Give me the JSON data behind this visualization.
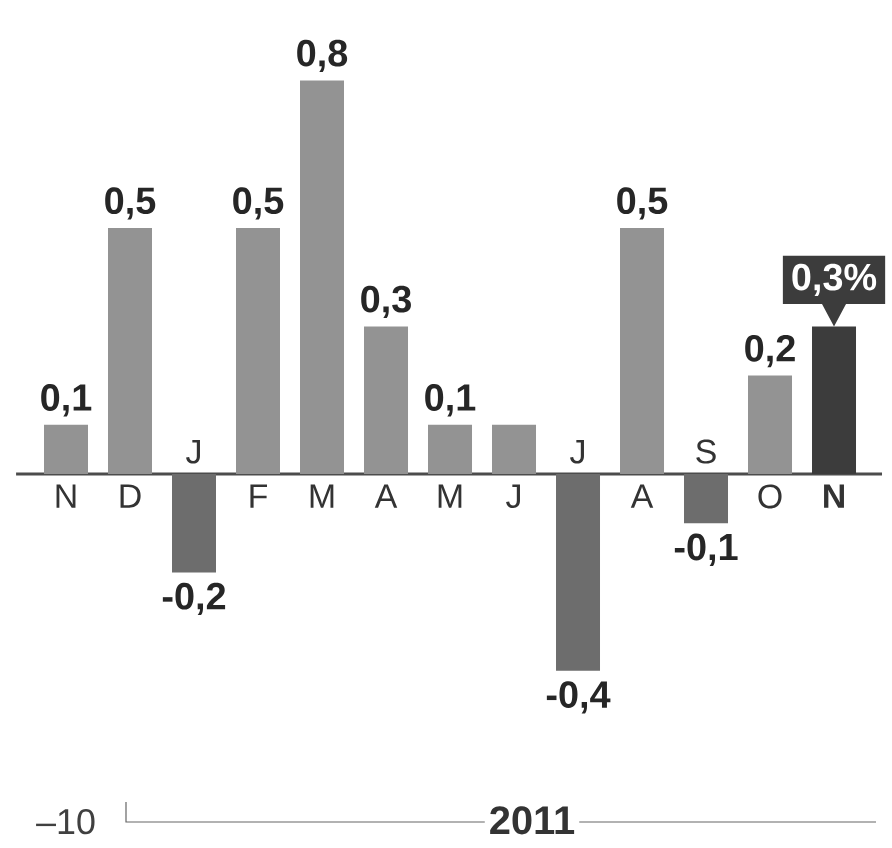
{
  "chart_data": {
    "type": "bar",
    "categories": [
      "N",
      "D",
      "J",
      "F",
      "M",
      "A",
      "M",
      "J",
      "J",
      "A",
      "S",
      "O",
      "N"
    ],
    "values": [
      0.1,
      0.5,
      -0.2,
      0.5,
      0.8,
      0.3,
      0.1,
      0.1,
      -0.4,
      0.5,
      -0.1,
      0.2,
      0.3
    ],
    "colors": [
      "#939393",
      "#939393",
      "#6d6d6d",
      "#939393",
      "#939393",
      "#939393",
      "#939393",
      "#939393",
      "#6d6d6d",
      "#939393",
      "#6d6d6d",
      "#939393",
      "#3c3c3c"
    ],
    "value_labels": [
      "0,1",
      "0,5",
      "-0,2",
      "0,5",
      "0,8",
      "0,3",
      "0,1",
      null,
      "-0,4",
      "0,5",
      "-0,1",
      "0,2",
      "0,3%"
    ],
    "annotations": [
      "–10",
      "2011"
    ]
  }
}
